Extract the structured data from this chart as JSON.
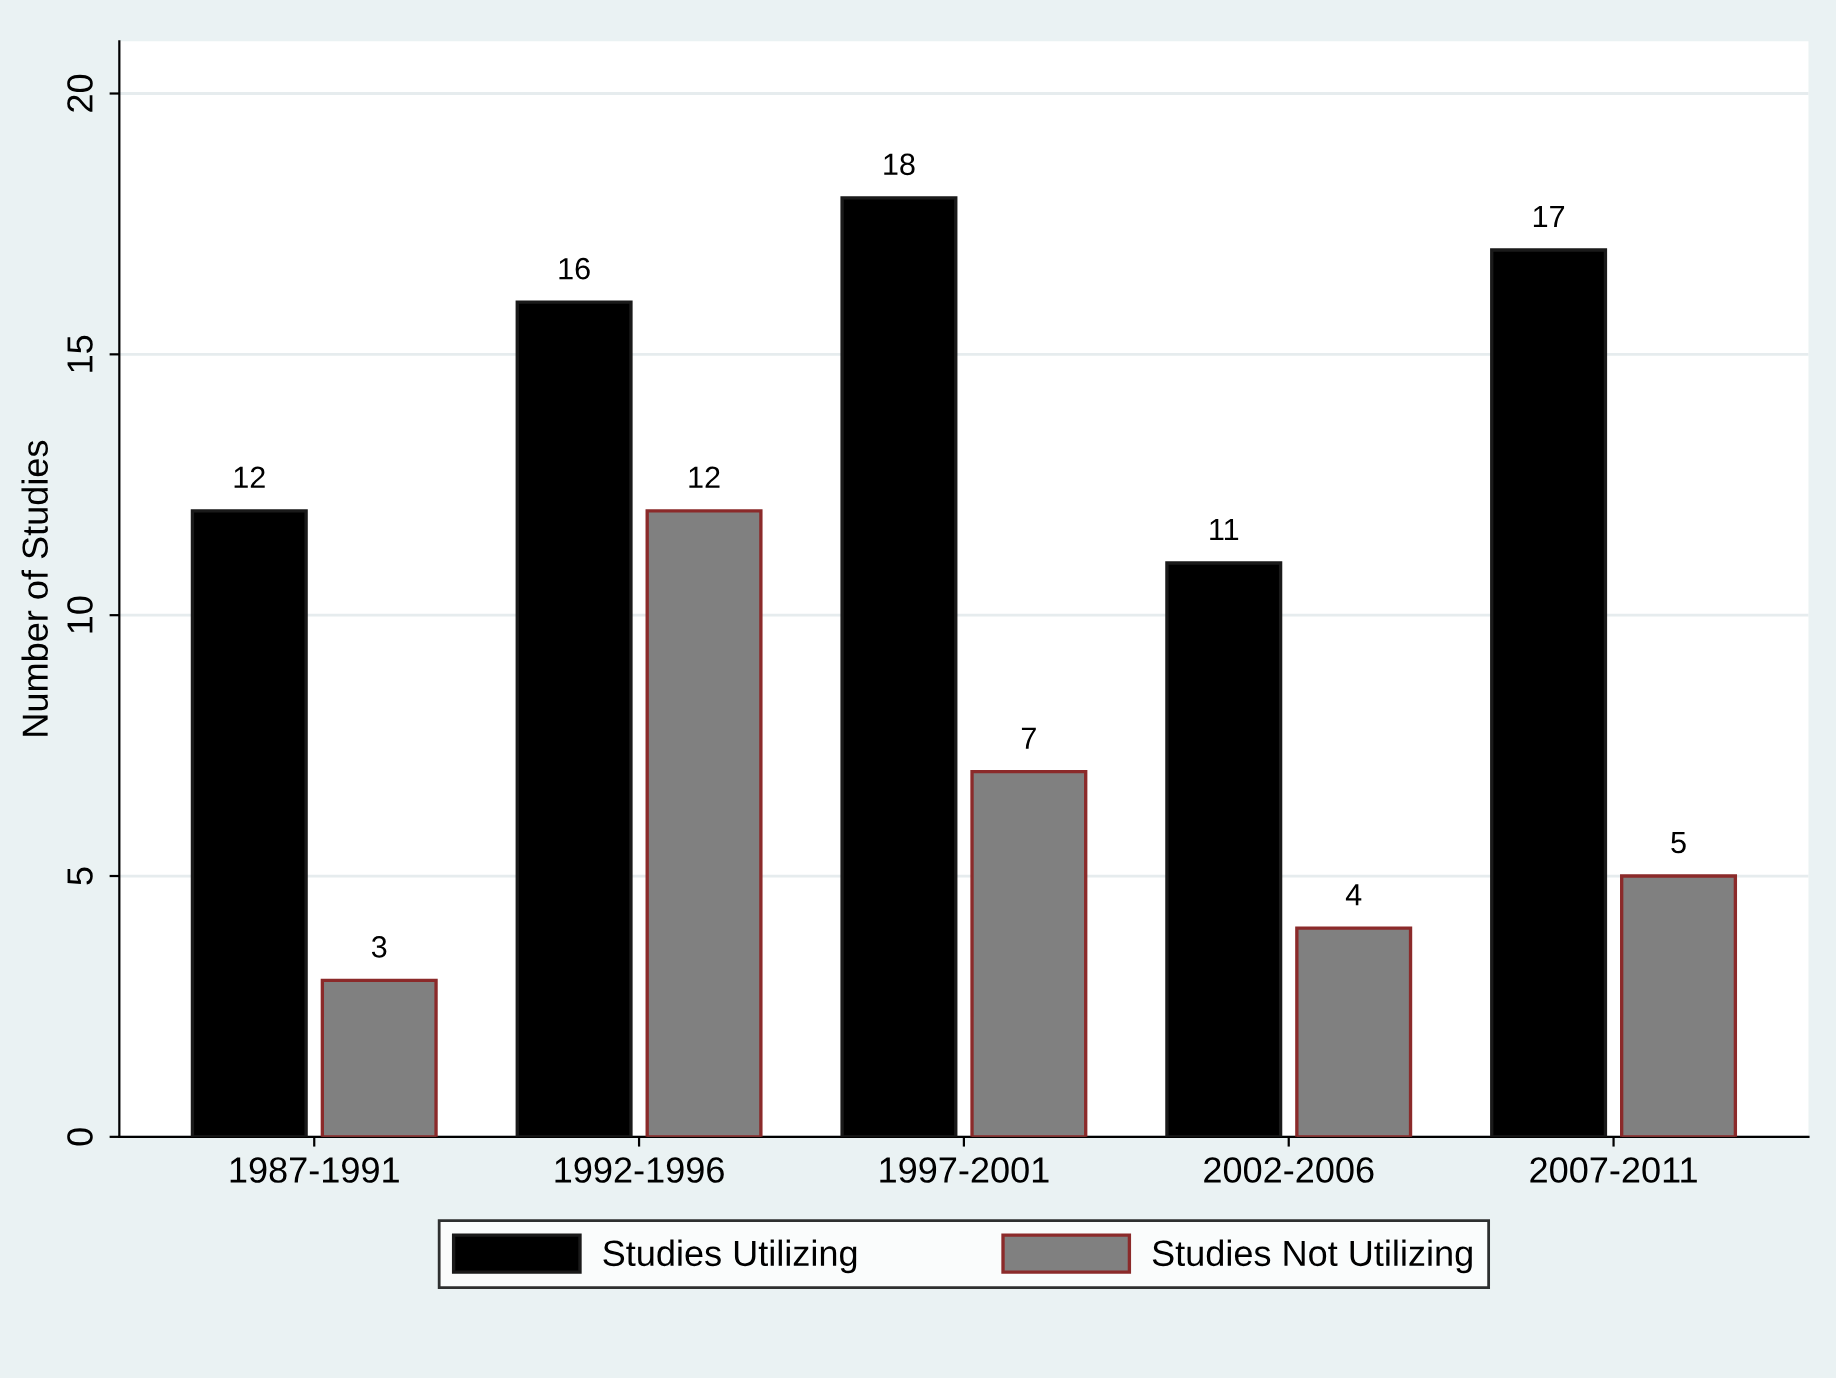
{
  "chart_data": {
    "type": "bar",
    "ylabel": "Number of Studies",
    "categories": [
      "1987-1991",
      "1992-1996",
      "1997-2001",
      "2002-2006",
      "2007-2011"
    ],
    "series": [
      {
        "name": "Studies Utilizing",
        "color": "#000000",
        "values": [
          12,
          16,
          18,
          11,
          17
        ]
      },
      {
        "name": "Studies Not Utilizing",
        "color": "#808080",
        "values": [
          3,
          12,
          7,
          4,
          5
        ]
      }
    ],
    "ylim": [
      0,
      21
    ],
    "yticks": [
      0,
      5,
      10,
      15,
      20
    ],
    "grid": "y",
    "legend": "bottom",
    "data_labels": true
  }
}
